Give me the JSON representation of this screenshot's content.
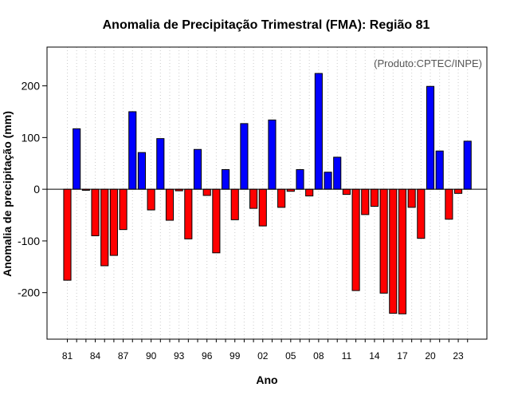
{
  "chart_data": {
    "type": "bar",
    "title": "Anomalia de Precipitação Trimestral (FMA): Região 81",
    "xlabel": "Ano",
    "ylabel": "Anomalia de precipitação (mm)",
    "annotation": "(Produto:CPTEC/INPE)",
    "ylim": [
      -290,
      275
    ],
    "yticks": [
      -200,
      -100,
      0,
      100,
      200
    ],
    "x_tick_labels": [
      "81",
      "84",
      "87",
      "90",
      "93",
      "96",
      "99",
      "02",
      "05",
      "08",
      "11",
      "14",
      "17",
      "20",
      "23"
    ],
    "x_tick_years": [
      1981,
      1984,
      1987,
      1990,
      1993,
      1996,
      1999,
      2002,
      2005,
      2008,
      2011,
      2014,
      2017,
      2020,
      2023
    ],
    "grid": true,
    "colors": {
      "positive": "#0000ff",
      "negative": "#ff0000"
    },
    "years": [
      1981,
      1982,
      1983,
      1984,
      1985,
      1986,
      1987,
      1988,
      1989,
      1990,
      1991,
      1992,
      1993,
      1994,
      1995,
      1996,
      1997,
      1998,
      1999,
      2000,
      2001,
      2002,
      2003,
      2004,
      2005,
      2006,
      2007,
      2008,
      2009,
      2010,
      2011,
      2012,
      2013,
      2014,
      2015,
      2016,
      2017,
      2018,
      2019,
      2020,
      2021,
      2022,
      2023,
      2024
    ],
    "values": [
      -176,
      117,
      -2,
      -90,
      -148,
      -128,
      -78,
      150,
      71,
      -40,
      98,
      -60,
      -3,
      -96,
      77,
      -12,
      -123,
      38,
      -59,
      127,
      -37,
      -71,
      134,
      -35,
      -4,
      38,
      -13,
      224,
      33,
      62,
      -10,
      -196,
      -49,
      -33,
      -201,
      -240,
      -241,
      -35,
      -95,
      199,
      74,
      -58,
      -8,
      93
    ]
  }
}
